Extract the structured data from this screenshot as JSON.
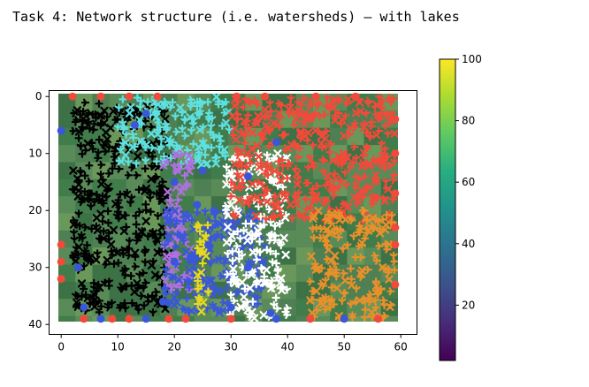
{
  "page": {
    "title": "Task 4: Network structure (i.e. watersheds) – with lakes"
  },
  "chart_data": {
    "type": "heatmap",
    "title": "Task 4: Network structure (i.e. watersheds) – with lakes",
    "xlabel": "",
    "ylabel": "",
    "xlim": [
      -0.5,
      59.5
    ],
    "ylim": [
      39.5,
      -0.5
    ],
    "y_inverted": true,
    "xticks": [
      0,
      10,
      20,
      30,
      40,
      50,
      60
    ],
    "yticks": [
      0,
      10,
      20,
      30,
      40
    ],
    "grid": false,
    "colormap": "viridis",
    "colorbar": {
      "range": [
        2,
        100
      ],
      "ticks": [
        20,
        40,
        60,
        80,
        100
      ],
      "orientation": "vertical",
      "placement": "right"
    },
    "background_terrain_colors": [
      "#3e7a4a",
      "#5a8c5a",
      "#6f9a5c",
      "#4f7f55",
      "#3a6f45"
    ],
    "watershed_colors": [
      "#000000",
      "#3a57d9",
      "#f24a3a",
      "#e8902a",
      "#b070e0",
      "#5fe0e0",
      "#ffffff"
    ],
    "watershed_regions": [
      {
        "name": "black",
        "color": "#000000",
        "x": [
          2,
          19
        ],
        "y": [
          1,
          38
        ]
      },
      {
        "name": "cyan",
        "color": "#5fe0e0",
        "x": [
          10,
          30
        ],
        "y": [
          0,
          12
        ]
      },
      {
        "name": "purple",
        "color": "#b070e0",
        "x": [
          18,
          23
        ],
        "y": [
          10,
          34
        ]
      },
      {
        "name": "blue",
        "color": "#3a57d9",
        "x": [
          18,
          36
        ],
        "y": [
          20,
          38
        ]
      },
      {
        "name": "white",
        "color": "#ffffff",
        "x": [
          29,
          40
        ],
        "y": [
          10,
          39
        ]
      },
      {
        "name": "red",
        "color": "#f24a3a",
        "x": [
          30,
          59
        ],
        "y": [
          0,
          22
        ]
      },
      {
        "name": "orange",
        "color": "#e8902a",
        "x": [
          44,
          59
        ],
        "y": [
          20,
          39
        ]
      },
      {
        "name": "yellow",
        "color": "#e8d820",
        "x": [
          24,
          26
        ],
        "y": [
          22,
          38
        ]
      }
    ],
    "outlets": [
      {
        "x": 2,
        "y": 0,
        "color": "#f24a3a"
      },
      {
        "x": 7,
        "y": 0,
        "color": "#f24a3a"
      },
      {
        "x": 12,
        "y": 0,
        "color": "#f24a3a"
      },
      {
        "x": 17,
        "y": 0,
        "color": "#f24a3a"
      },
      {
        "x": 31,
        "y": 0,
        "color": "#f24a3a"
      },
      {
        "x": 36,
        "y": 0,
        "color": "#f24a3a"
      },
      {
        "x": 45,
        "y": 0,
        "color": "#f24a3a"
      },
      {
        "x": 52,
        "y": 0,
        "color": "#f24a3a"
      },
      {
        "x": 59,
        "y": 4,
        "color": "#f24a3a"
      },
      {
        "x": 59,
        "y": 10,
        "color": "#f24a3a"
      },
      {
        "x": 59,
        "y": 17,
        "color": "#f24a3a"
      },
      {
        "x": 59,
        "y": 23,
        "color": "#f24a3a"
      },
      {
        "x": 59,
        "y": 26,
        "color": "#f24a3a"
      },
      {
        "x": 59,
        "y": 33,
        "color": "#f24a3a"
      },
      {
        "x": 0,
        "y": 6,
        "color": "#3a57d9"
      },
      {
        "x": 0,
        "y": 26,
        "color": "#f24a3a"
      },
      {
        "x": 0,
        "y": 29,
        "color": "#f24a3a"
      },
      {
        "x": 0,
        "y": 32,
        "color": "#f24a3a"
      },
      {
        "x": 4,
        "y": 39,
        "color": "#f24a3a"
      },
      {
        "x": 7,
        "y": 39,
        "color": "#3a57d9"
      },
      {
        "x": 9,
        "y": 39,
        "color": "#f24a3a"
      },
      {
        "x": 12,
        "y": 39,
        "color": "#f24a3a"
      },
      {
        "x": 15,
        "y": 39,
        "color": "#3a57d9"
      },
      {
        "x": 19,
        "y": 39,
        "color": "#f24a3a"
      },
      {
        "x": 22,
        "y": 39,
        "color": "#f24a3a"
      },
      {
        "x": 30,
        "y": 39,
        "color": "#f24a3a"
      },
      {
        "x": 38,
        "y": 39,
        "color": "#3a57d9"
      },
      {
        "x": 44,
        "y": 39,
        "color": "#f24a3a"
      },
      {
        "x": 50,
        "y": 39,
        "color": "#3a57d9"
      },
      {
        "x": 56,
        "y": 39,
        "color": "#f24a3a"
      }
    ],
    "lakes": [
      {
        "x": 13,
        "y": 5
      },
      {
        "x": 15,
        "y": 3
      },
      {
        "x": 20,
        "y": 15
      },
      {
        "x": 24,
        "y": 19
      },
      {
        "x": 27,
        "y": 20
      },
      {
        "x": 26,
        "y": 26
      },
      {
        "x": 20,
        "y": 29
      },
      {
        "x": 18,
        "y": 36
      },
      {
        "x": 30,
        "y": 37
      },
      {
        "x": 37,
        "y": 38
      },
      {
        "x": 38,
        "y": 8
      },
      {
        "x": 33,
        "y": 14
      },
      {
        "x": 25,
        "y": 13
      },
      {
        "x": 33,
        "y": 30
      },
      {
        "x": 3,
        "y": 30
      },
      {
        "x": 4,
        "y": 37
      }
    ]
  }
}
